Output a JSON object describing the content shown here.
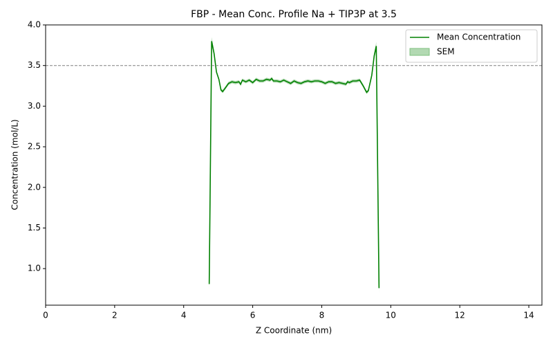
{
  "chart_data": {
    "type": "line",
    "title": "FBP - Mean Conc. Profile Na + TIP3P at 3.5",
    "x_label": "Z Coordinate (nm)",
    "y_label": "Concentration (mol/L)",
    "x": [
      4.74,
      4.81,
      4.88,
      4.95,
      5.02,
      5.08,
      5.13,
      5.2,
      5.3,
      5.4,
      5.5,
      5.6,
      5.65,
      5.7,
      5.8,
      5.9,
      6.0,
      6.1,
      6.2,
      6.3,
      6.4,
      6.5,
      6.55,
      6.6,
      6.7,
      6.8,
      6.9,
      7.0,
      7.1,
      7.2,
      7.3,
      7.4,
      7.5,
      7.6,
      7.7,
      7.8,
      7.9,
      8.0,
      8.1,
      8.2,
      8.3,
      8.4,
      8.5,
      8.6,
      8.7,
      8.75,
      8.8,
      8.9,
      9.0,
      9.1,
      9.2,
      9.3,
      9.35,
      9.45,
      9.52,
      9.58,
      9.66
    ],
    "series": [
      {
        "name": "Mean Concentration",
        "color": "#008000",
        "values": [
          0.81,
          3.8,
          3.65,
          3.42,
          3.33,
          3.2,
          3.18,
          3.22,
          3.28,
          3.3,
          3.29,
          3.3,
          3.27,
          3.32,
          3.3,
          3.32,
          3.29,
          3.33,
          3.31,
          3.31,
          3.33,
          3.32,
          3.34,
          3.31,
          3.31,
          3.3,
          3.32,
          3.3,
          3.28,
          3.31,
          3.29,
          3.28,
          3.3,
          3.31,
          3.3,
          3.31,
          3.31,
          3.3,
          3.28,
          3.3,
          3.3,
          3.28,
          3.29,
          3.28,
          3.27,
          3.3,
          3.29,
          3.31,
          3.31,
          3.32,
          3.25,
          3.17,
          3.19,
          3.38,
          3.62,
          3.74,
          0.76
        ]
      },
      {
        "name": "SEM",
        "color": "#7fc07f",
        "values": [
          0.07,
          0.05,
          0.03,
          0.02,
          0.02,
          0.02,
          0.02,
          0.02,
          0.02,
          0.02,
          0.02,
          0.02,
          0.02,
          0.02,
          0.02,
          0.02,
          0.02,
          0.02,
          0.02,
          0.02,
          0.02,
          0.02,
          0.02,
          0.02,
          0.02,
          0.02,
          0.02,
          0.02,
          0.02,
          0.02,
          0.02,
          0.02,
          0.02,
          0.02,
          0.02,
          0.02,
          0.02,
          0.02,
          0.02,
          0.02,
          0.02,
          0.02,
          0.02,
          0.02,
          0.02,
          0.02,
          0.02,
          0.02,
          0.02,
          0.02,
          0.02,
          0.02,
          0.02,
          0.03,
          0.03,
          0.05,
          0.07
        ]
      }
    ],
    "hline": 3.5,
    "hline_color": "#808080",
    "xlim": [
      0,
      14.38
    ],
    "ylim": [
      0.55,
      4.0
    ],
    "xticks": [
      0,
      2,
      4,
      6,
      8,
      10,
      12,
      14
    ],
    "yticks": [
      {
        "value": 1,
        "label": "1.0"
      },
      {
        "value": 1.5,
        "label": "1.5"
      },
      {
        "value": 2,
        "label": "2.0"
      },
      {
        "value": 2.5,
        "label": "2.5"
      },
      {
        "value": 3,
        "label": "3.0"
      },
      {
        "value": 3.5,
        "label": "3.5"
      },
      {
        "value": 4,
        "label": "4.0"
      }
    ],
    "legend": "upper right"
  }
}
